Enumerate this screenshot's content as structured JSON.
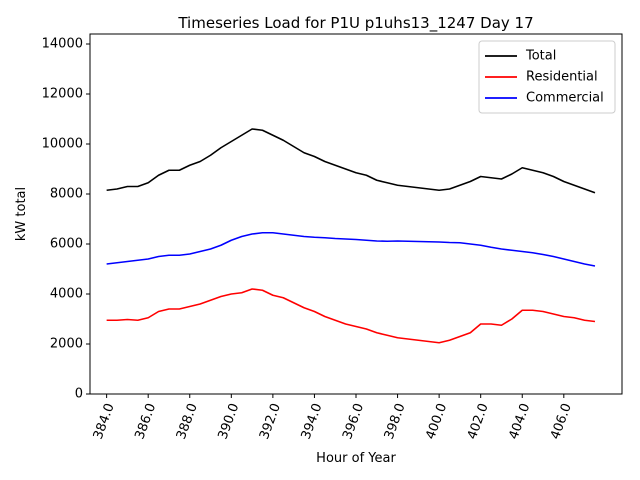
{
  "chart_data": {
    "type": "line",
    "title": "Timeseries Load for P1U p1uhs13_1247  Day 17",
    "xlabel": "Hour of Year",
    "ylabel": "kW total",
    "xlim": [
      383.2,
      408.8
    ],
    "ylim": [
      0,
      14400
    ],
    "xticks": [
      "384.0",
      "386.0",
      "388.0",
      "390.0",
      "392.0",
      "394.0",
      "396.0",
      "398.0",
      "400.0",
      "402.0",
      "404.0",
      "406.0"
    ],
    "xtick_values": [
      384,
      386,
      388,
      390,
      392,
      394,
      396,
      398,
      400,
      402,
      404,
      406
    ],
    "yticks": [
      "0",
      "2000",
      "4000",
      "6000",
      "8000",
      "10000",
      "12000",
      "14000"
    ],
    "ytick_values": [
      0,
      2000,
      4000,
      6000,
      8000,
      10000,
      12000,
      14000
    ],
    "legend_position": "top-right",
    "x": [
      384.0,
      384.5,
      385.0,
      385.5,
      386.0,
      386.5,
      387.0,
      387.5,
      388.0,
      388.5,
      389.0,
      389.5,
      390.0,
      390.5,
      391.0,
      391.5,
      392.0,
      392.5,
      393.0,
      393.5,
      394.0,
      394.5,
      395.0,
      395.5,
      396.0,
      396.5,
      397.0,
      397.5,
      398.0,
      398.5,
      399.0,
      399.5,
      400.0,
      400.5,
      401.0,
      401.5,
      402.0,
      402.5,
      403.0,
      403.5,
      404.0,
      404.5,
      405.0,
      405.5,
      406.0,
      406.5,
      407.0,
      407.5
    ],
    "series": [
      {
        "name": "Total",
        "color": "#000000",
        "values": [
          8150,
          8200,
          8300,
          8300,
          8450,
          8750,
          8950,
          8950,
          9150,
          9300,
          9550,
          9850,
          10100,
          10350,
          10600,
          10550,
          10350,
          10150,
          9900,
          9650,
          9500,
          9300,
          9150,
          9000,
          8850,
          8750,
          8550,
          8450,
          8350,
          8300,
          8250,
          8200,
          8150,
          8200,
          8350,
          8500,
          8700,
          8650,
          8600,
          8800,
          9050,
          8950,
          8850,
          8700,
          8500,
          8350,
          8200,
          8050
        ]
      },
      {
        "name": "Residential",
        "color": "#ff0000",
        "values": [
          2950,
          2950,
          2980,
          2950,
          3050,
          3300,
          3400,
          3400,
          3500,
          3600,
          3750,
          3900,
          4000,
          4050,
          4200,
          4150,
          3950,
          3850,
          3650,
          3450,
          3300,
          3100,
          2950,
          2800,
          2700,
          2600,
          2450,
          2350,
          2250,
          2200,
          2150,
          2100,
          2050,
          2150,
          2300,
          2450,
          2800,
          2800,
          2750,
          3000,
          3350,
          3350,
          3300,
          3200,
          3100,
          3050,
          2950,
          2900
        ]
      },
      {
        "name": "Commercial",
        "color": "#0000ff",
        "values": [
          5200,
          5250,
          5300,
          5350,
          5400,
          5500,
          5550,
          5550,
          5600,
          5700,
          5800,
          5950,
          6150,
          6300,
          6400,
          6450,
          6450,
          6400,
          6350,
          6300,
          6270,
          6250,
          6220,
          6200,
          6180,
          6150,
          6120,
          6110,
          6120,
          6110,
          6100,
          6090,
          6080,
          6060,
          6050,
          6000,
          5950,
          5870,
          5800,
          5750,
          5700,
          5650,
          5580,
          5500,
          5400,
          5300,
          5200,
          5120
        ]
      }
    ]
  }
}
